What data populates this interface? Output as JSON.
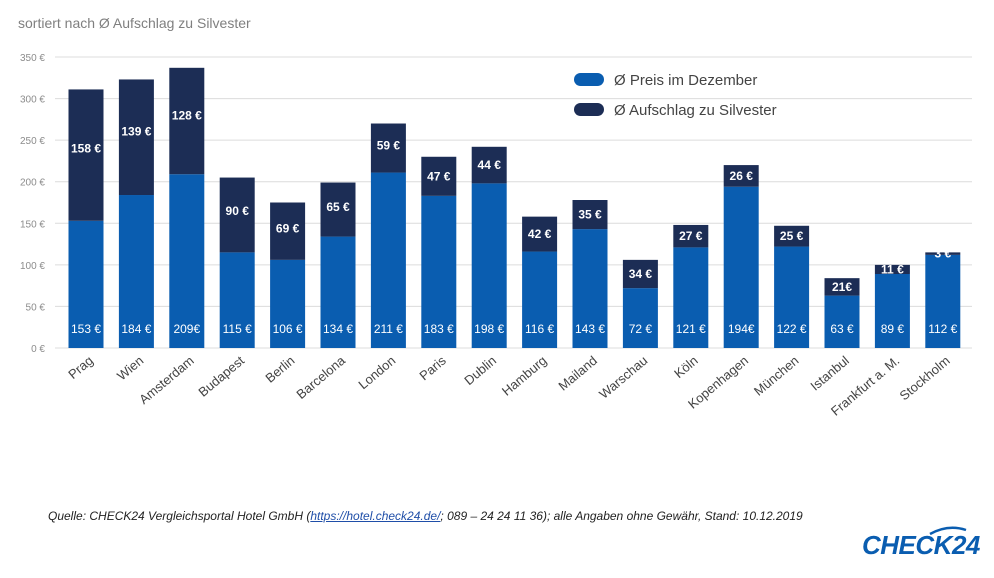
{
  "chart_data": {
    "type": "bar",
    "stacked": true,
    "title": "sortiert nach Ø Aufschlag zu Silvester",
    "categories": [
      "Prag",
      "Wien",
      "Amsterdam",
      "Budapest",
      "Berlin",
      "Barcelona",
      "London",
      "Paris",
      "Dublin",
      "Hamburg",
      "Mailand",
      "Warschau",
      "Köln",
      "Kopenhagen",
      "München",
      "Istanbul",
      "Frankfurt a. M.",
      "Stockholm"
    ],
    "series": [
      {
        "name": "Ø Preis im Dezember",
        "color": "#0a5db0",
        "values": [
          153,
          184,
          209,
          115,
          106,
          134,
          211,
          183,
          198,
          116,
          143,
          72,
          121,
          194,
          122,
          63,
          89,
          112
        ],
        "labels": [
          "153 €",
          "184 €",
          "209€",
          "115 €",
          "106 €",
          "134 €",
          "211 €",
          "183 €",
          "198 €",
          "116 €",
          "143 €",
          "72 €",
          "121 €",
          "194€",
          "122 €",
          "63 €",
          "89 €",
          "112 €"
        ]
      },
      {
        "name": "Ø Aufschlag zu Silvester",
        "color": "#1c2d55",
        "values": [
          158,
          139,
          128,
          90,
          69,
          65,
          59,
          47,
          44,
          42,
          35,
          34,
          27,
          26,
          25,
          21,
          11,
          3
        ],
        "labels": [
          "158 €",
          "139 €",
          "128 €",
          "90 €",
          "69 €",
          "65 €",
          "59 €",
          "47 €",
          "44 €",
          "42 €",
          "35 €",
          "34 €",
          "27 €",
          "26 €",
          "25 €",
          "21€",
          "11 €",
          "3 €"
        ]
      }
    ],
    "ylim": [
      0,
      350
    ],
    "yticks": [
      0,
      50,
      100,
      150,
      200,
      250,
      300,
      350
    ],
    "ytick_labels": [
      "0 €",
      "50 €",
      "100 €",
      "150 €",
      "200 €",
      "250 €",
      "300 €",
      "350 €"
    ],
    "grid": true,
    "legend_position": "top-right"
  },
  "footer": {
    "source_prefix": "Quelle: CHECK24 Vergleichsportal Hotel GmbH (",
    "source_link": "https://hotel.check24.de/",
    "source_suffix": "; 089 – 24 24 11 36); alle Angaben ohne Gewähr, Stand: 10.12.2019",
    "logo": "CHECK24"
  }
}
